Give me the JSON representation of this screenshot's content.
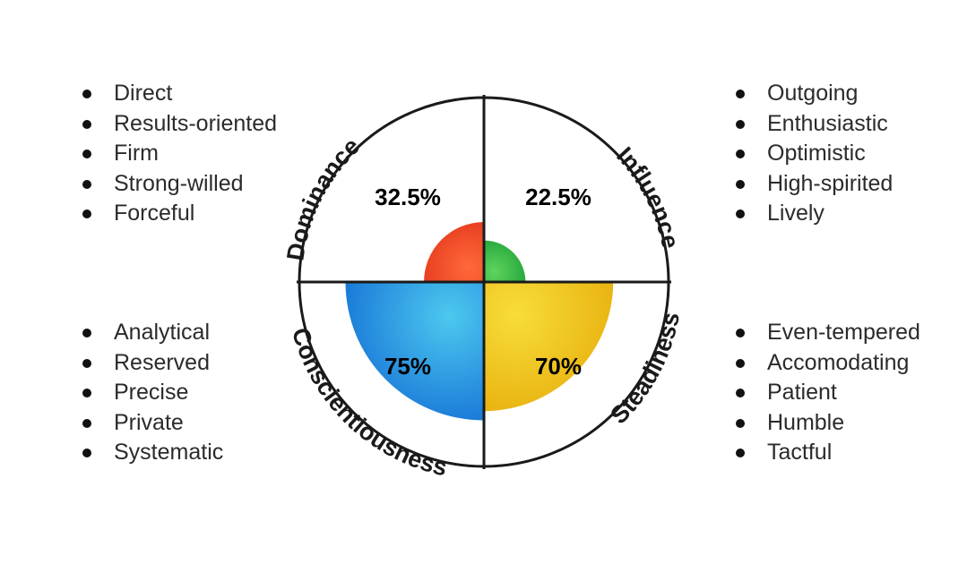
{
  "chart_data": {
    "type": "disc-quadrant",
    "max_value": 100,
    "quadrants": [
      {
        "key": "dominance",
        "label": "Dominance",
        "value": 32.5,
        "value_label": "32.5%",
        "color": "#e53a1e",
        "color_light": "#ff6a3a",
        "traits": [
          "Direct",
          "Results-oriented",
          "Firm",
          "Strong-willed",
          "Forceful"
        ]
      },
      {
        "key": "influence",
        "label": "Influence",
        "value": 22.5,
        "value_label": "22.5%",
        "color": "#22a539",
        "color_light": "#5fd35f",
        "traits": [
          "Outgoing",
          "Enthusiastic",
          "Optimistic",
          "High-spirited",
          "Lively"
        ]
      },
      {
        "key": "steadiness",
        "label": "Steadiness",
        "value": 70,
        "value_label": "70%",
        "color": "#e8b00e",
        "color_light": "#f7dd3a",
        "traits": [
          "Even-tempered",
          "Accomodating",
          "Patient",
          "Humble",
          "Tactful"
        ]
      },
      {
        "key": "conscientiousness",
        "label": "Conscientiousness",
        "value": 75,
        "value_label": "75%",
        "color": "#1673d6",
        "color_light": "#4cc8ef",
        "traits": [
          "Analytical",
          "Reserved",
          "Precise",
          "Private",
          "Systematic"
        ]
      }
    ]
  }
}
